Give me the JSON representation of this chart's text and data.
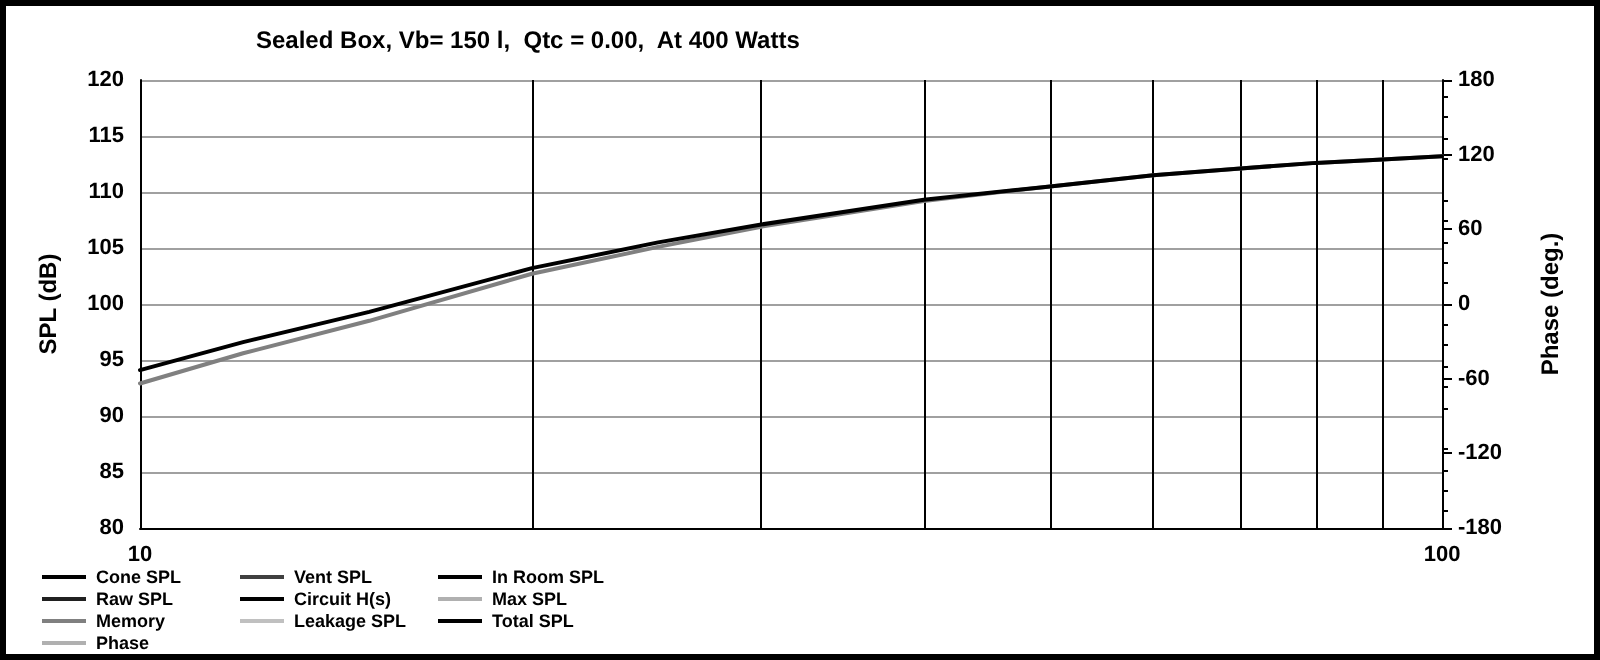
{
  "chart_data": {
    "type": "line",
    "title": "Sealed Box, Vb= 150 l,  Qtc = 0.00,  At 400 Watts",
    "xlabel": null,
    "ylabel": "SPL (dB)",
    "y2label": "Phase (deg.)",
    "x": [
      10,
      12,
      15,
      20,
      25,
      30,
      40,
      50,
      60,
      70,
      80,
      90,
      100
    ],
    "series": [
      {
        "name": "Cone SPL",
        "color": "#000000",
        "values": [
          null,
          null,
          null,
          null,
          null,
          null,
          null,
          null,
          null,
          null,
          null,
          null,
          null
        ]
      },
      {
        "name": "Vent SPL",
        "color": "#404040",
        "values": [
          null,
          null,
          null,
          null,
          null,
          null,
          null,
          null,
          null,
          null,
          null,
          null,
          null
        ]
      },
      {
        "name": "In Room SPL",
        "color": "#000000",
        "values": [
          null,
          null,
          null,
          null,
          null,
          null,
          null,
          null,
          null,
          null,
          null,
          null,
          null
        ]
      },
      {
        "name": "Raw SPL",
        "color": "#202020",
        "values": [
          null,
          null,
          null,
          null,
          null,
          null,
          null,
          null,
          null,
          null,
          null,
          null,
          null
        ]
      },
      {
        "name": "Circuit H(s)",
        "color": "#000000",
        "values": [
          null,
          null,
          null,
          null,
          null,
          null,
          null,
          null,
          null,
          null,
          null,
          null,
          null
        ]
      },
      {
        "name": "Max SPL",
        "color": "#b0b0b0",
        "values": [
          null,
          null,
          null,
          null,
          null,
          null,
          null,
          null,
          null,
          null,
          null,
          null,
          null
        ]
      },
      {
        "name": "Memory",
        "color": "#808080",
        "values": [
          92.9,
          95.6,
          98.5,
          102.7,
          105.1,
          106.9,
          109.2,
          110.5,
          111.5,
          112.1,
          112.6,
          112.9,
          113.2
        ]
      },
      {
        "name": "Leakage SPL",
        "color": "#c0c0c0",
        "values": [
          null,
          null,
          null,
          null,
          null,
          null,
          null,
          null,
          null,
          null,
          null,
          null,
          null
        ]
      },
      {
        "name": "Total SPL",
        "color": "#000000",
        "values": [
          94.1,
          96.6,
          99.3,
          103.2,
          105.5,
          107.1,
          109.3,
          110.5,
          111.5,
          112.1,
          112.6,
          112.9,
          113.2
        ]
      },
      {
        "name": "Phase",
        "color": "#b0b0b0",
        "values": [
          null,
          null,
          null,
          null,
          null,
          null,
          null,
          null,
          null,
          null,
          null,
          null,
          null
        ]
      }
    ],
    "log": "x",
    "xlim": [
      10,
      100
    ],
    "xticks": [
      10,
      {
        "value": 20,
        "label": null
      },
      {
        "value": 30,
        "label": null
      },
      {
        "value": 40,
        "label": null
      },
      {
        "value": 50,
        "label": null
      },
      {
        "value": 60,
        "label": null
      },
      {
        "value": 70,
        "label": null
      },
      {
        "value": 80,
        "label": null
      },
      {
        "value": 90,
        "label": null
      },
      100
    ],
    "ylim": [
      80,
      120
    ],
    "yticks": [
      80,
      85,
      90,
      95,
      100,
      105,
      110,
      115,
      120
    ],
    "y2lim": [
      -180,
      180
    ],
    "y2ticks": [
      -180,
      -120,
      -60,
      0,
      60,
      120,
      180
    ],
    "grid": true,
    "legend": "bottom",
    "marker": "none",
    "line_style": "solid"
  }
}
